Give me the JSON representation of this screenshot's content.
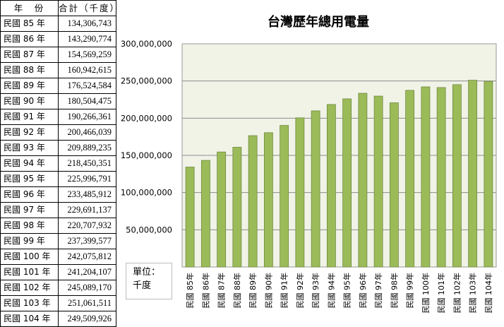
{
  "table": {
    "header_year": "年　份",
    "header_total": "合計（千度）",
    "rows": [
      {
        "year": "民國 85 年",
        "total": "134,306,743"
      },
      {
        "year": "民國 86 年",
        "total": "143,290,774"
      },
      {
        "year": "民國 87 年",
        "total": "154,569,259"
      },
      {
        "year": "民國 88 年",
        "total": "160,942,615"
      },
      {
        "year": "民國 89 年",
        "total": "176,524,584"
      },
      {
        "year": "民國 90 年",
        "total": "180,504,475"
      },
      {
        "year": "民國 91 年",
        "total": "190,266,361"
      },
      {
        "year": "民國 92 年",
        "total": "200,466,039"
      },
      {
        "year": "民國 93 年",
        "total": "209,889,235"
      },
      {
        "year": "民國 94 年",
        "total": "218,450,351"
      },
      {
        "year": "民國 95 年",
        "total": "225,996,791"
      },
      {
        "year": "民國 96 年",
        "total": "233,485,912"
      },
      {
        "year": "民國 97 年",
        "total": "229,691,137"
      },
      {
        "year": "民國 98 年",
        "total": "220,707,932"
      },
      {
        "year": "民國 99 年",
        "total": "237,399,577"
      },
      {
        "year": "民國 100 年",
        "total": "242,075,812"
      },
      {
        "year": "民國 101 年",
        "total": "241,204,107"
      },
      {
        "year": "民國 102 年",
        "total": "245,089,170"
      },
      {
        "year": "民國 103 年",
        "total": "251,061,511"
      },
      {
        "year": "民國 104 年",
        "total": "249,509,926"
      }
    ]
  },
  "unit_box": {
    "line1": "單位：",
    "line2": "千度"
  },
  "chart_data": {
    "type": "bar",
    "title": "台灣歷年總用電量",
    "xlabel": "",
    "ylabel": "",
    "categories": [
      "民國 85年",
      "民國 86年",
      "民國 87年",
      "民國 88年",
      "民國 89年",
      "民國 90年",
      "民國 91年",
      "民國 92年",
      "民國 93年",
      "民國 94年",
      "民國 95年",
      "民國 96年",
      "民國 97年",
      "民國 98年",
      "民國 99年",
      "民國 100年",
      "民國 101年",
      "民國 102年",
      "民國 103年",
      "民國 104年"
    ],
    "values": [
      134306743,
      143290774,
      154569259,
      160942615,
      176524584,
      180504475,
      190266361,
      200466039,
      209889235,
      218450351,
      225996791,
      233485912,
      229691137,
      220707932,
      237399577,
      242075812,
      241204107,
      245089170,
      251061511,
      249509926
    ],
    "ylim": [
      0,
      300000000
    ],
    "yticks": [
      0,
      50000000,
      100000000,
      150000000,
      200000000,
      250000000,
      300000000
    ],
    "ytick_labels": [
      "",
      "50,000,000",
      "100,000,000",
      "150,000,000",
      "200,000,000",
      "250,000,000",
      "300,000,000"
    ],
    "grid": true,
    "legend": "none",
    "colors": {
      "bar": "#9bbb59",
      "bar_edge": "#71893f",
      "plot_bg": "#f0f3e6",
      "grid": "#8c8c8c"
    }
  }
}
